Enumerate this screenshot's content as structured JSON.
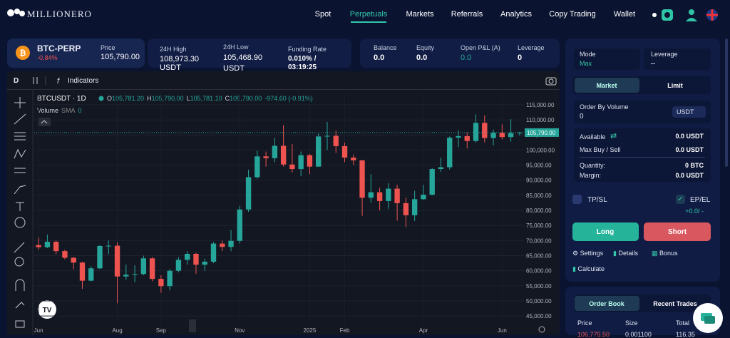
{
  "nav": {
    "brand": "MILLIONERO",
    "links": [
      "Spot",
      "Perpetuals",
      "Markets",
      "Referrals",
      "Analytics",
      "Copy Trading",
      "Wallet"
    ]
  },
  "ticker": {
    "symbol": "BTC-PERP",
    "change": "-0.84%",
    "price_label": "Price",
    "price": "105,790.00",
    "high_label": "24H High",
    "high": "108,973.30 USDT",
    "low_label": "24H Low",
    "low": "105,468.90 USDT",
    "funding_label": "Funding Rate",
    "funding": "0.010% / 03:19:25"
  },
  "account": {
    "balance_label": "Balance",
    "balance": "0.0",
    "equity_label": "Equity",
    "equity": "0.0",
    "pnl_label": "Open P&L (A)",
    "pnl": "0.0",
    "leverage_label": "Leverage",
    "leverage": "0"
  },
  "toolbar": {
    "interval": "D",
    "indicators": "Indicators"
  },
  "order_form": {
    "mode_label": "Mode",
    "mode": "Max",
    "leverage_label": "Leverage",
    "leverage": "--",
    "tabs": [
      "Market",
      "Limit"
    ],
    "volume_label": "Order By Volume",
    "volume": "0",
    "currency": "USDT",
    "available_label": "Available",
    "available": "0.0 USDT",
    "maxbuy_label": "Max Buy / Sell",
    "maxbuy": "0.0 USDT",
    "quantity_label": "Quantity:",
    "quantity": "0 BTC",
    "margin_label": "Margin:",
    "margin": "0.0 USDT",
    "tpsl": "TP/SL",
    "epel": "EP/EL",
    "epel_value": "+0.0/ -",
    "long": "Long",
    "short": "Short",
    "links": [
      "Settings",
      "Details",
      "Bonus",
      "Calculate"
    ]
  },
  "order_book": {
    "tabs": [
      "Order Book",
      "Recent Trades"
    ],
    "columns": [
      "Price",
      "Size",
      "Total"
    ],
    "rows": [
      [
        "106,775.50",
        "0.001100",
        "116.35"
      ]
    ]
  },
  "chart_data": {
    "type": "candlestick",
    "title": "BTCUSDT · 1D",
    "ohlc_legend": {
      "o_label": "O",
      "o": "105,781.20",
      "h_label": "H",
      "h": "105,790.00",
      "l_label": "L",
      "l": "105,781.10",
      "c_label": "C",
      "c": "105,790.00",
      "change": "-974.60 (-0.91%)"
    },
    "volume_legend": {
      "name": "Volume",
      "sma": "SMA",
      "value": "0"
    },
    "last_price_label": "105,790.00",
    "up_color": "#26a69a",
    "down_color": "#ef5350",
    "grid": true,
    "categories": [
      "Jun",
      null,
      null,
      null,
      null,
      null,
      null,
      null,
      null,
      "Aug",
      null,
      null,
      null,
      null,
      "Sep",
      null,
      null,
      null,
      null,
      null,
      null,
      null,
      null,
      "Nov",
      null,
      null,
      null,
      null,
      null,
      null,
      null,
      "2025",
      null,
      null,
      null,
      "Feb",
      null,
      null,
      null,
      null,
      null,
      null,
      null,
      null,
      "Apr",
      null,
      null,
      null,
      null,
      null,
      null,
      null,
      null,
      "Jun",
      null,
      null
    ],
    "open": [
      68500,
      67800,
      69600,
      66500,
      64300,
      62700,
      56700,
      60800,
      68200,
      68300,
      58100,
      58700,
      58900,
      64100,
      57300,
      54900,
      60000,
      63600,
      65600,
      62000,
      63000,
      69000,
      67900,
      69900,
      80300,
      91000,
      97900,
      97300,
      101400,
      95200,
      93700,
      98300,
      94500,
      104500,
      104700,
      101300,
      97500,
      96600,
      84200,
      86000,
      83100,
      87200,
      82400,
      78400,
      83700,
      85200,
      93700,
      94300,
      104100,
      104600,
      103000,
      109000,
      104000,
      105700,
      104300,
      105600
    ],
    "high": [
      71000,
      72000,
      70000,
      67000,
      64500,
      63000,
      61500,
      68500,
      70000,
      69500,
      62000,
      61800,
      65000,
      64500,
      58500,
      60500,
      64500,
      66500,
      66000,
      64000,
      69500,
      70000,
      73500,
      81500,
      93500,
      99800,
      99500,
      104000,
      108300,
      102000,
      99500,
      98700,
      105500,
      109300,
      106500,
      102500,
      98500,
      96600,
      92000,
      87500,
      89000,
      88500,
      84200,
      86500,
      88500,
      94000,
      97500,
      104500,
      106500,
      105800,
      111800,
      111500,
      106800,
      108500,
      110200,
      106000
    ],
    "low": [
      67000,
      67500,
      65500,
      63800,
      60500,
      54000,
      56500,
      60500,
      65500,
      49200,
      57000,
      56200,
      58500,
      56500,
      52700,
      53500,
      59500,
      62000,
      59000,
      60000,
      62500,
      66500,
      66500,
      69000,
      79500,
      90500,
      94500,
      96000,
      94500,
      92500,
      91300,
      92000,
      94500,
      100000,
      99000,
      96000,
      95000,
      78200,
      82500,
      80000,
      80500,
      76600,
      74500,
      76500,
      83500,
      85000,
      92800,
      93500,
      101000,
      100500,
      102500,
      102500,
      101500,
      103500,
      102800,
      104800
    ],
    "close": [
      67800,
      69600,
      66500,
      64300,
      62700,
      56700,
      60800,
      68200,
      68300,
      58100,
      58700,
      58900,
      64100,
      57300,
      54900,
      60000,
      63600,
      65600,
      62000,
      63000,
      69000,
      67900,
      69900,
      80300,
      91000,
      97900,
      97300,
      101400,
      95200,
      93700,
      98300,
      94500,
      104500,
      104700,
      101300,
      97500,
      96600,
      84200,
      86000,
      83100,
      87200,
      82400,
      78400,
      83700,
      85200,
      93700,
      94300,
      104100,
      104600,
      103000,
      109000,
      104000,
      105700,
      104300,
      105600,
      105790
    ],
    "ylim": [
      42200,
      119000
    ],
    "yticks": [
      {
        "value": 45000,
        "label": "45,000.00"
      },
      {
        "value": 50000,
        "label": "50,000.00"
      },
      {
        "value": 55000,
        "label": "55,000.00"
      },
      {
        "value": 60000,
        "label": "60,000.00"
      },
      {
        "value": 65000,
        "label": "65,000.00"
      },
      {
        "value": 70000,
        "label": "70,000.00"
      },
      {
        "value": 75000,
        "label": "75,000.00"
      },
      {
        "value": 80000,
        "label": "80,000.00"
      },
      {
        "value": 85000,
        "label": "85,000.00"
      },
      {
        "value": 90000,
        "label": "90,000.00"
      },
      {
        "value": 95000,
        "label": "95,000.00"
      },
      {
        "value": 100000,
        "label": "100,000.00"
      },
      {
        "value": 105000,
        "label": "105,000.00"
      },
      {
        "value": 110000,
        "label": "110,000.00"
      },
      {
        "value": 115000,
        "label": "115,000.00"
      }
    ]
  }
}
